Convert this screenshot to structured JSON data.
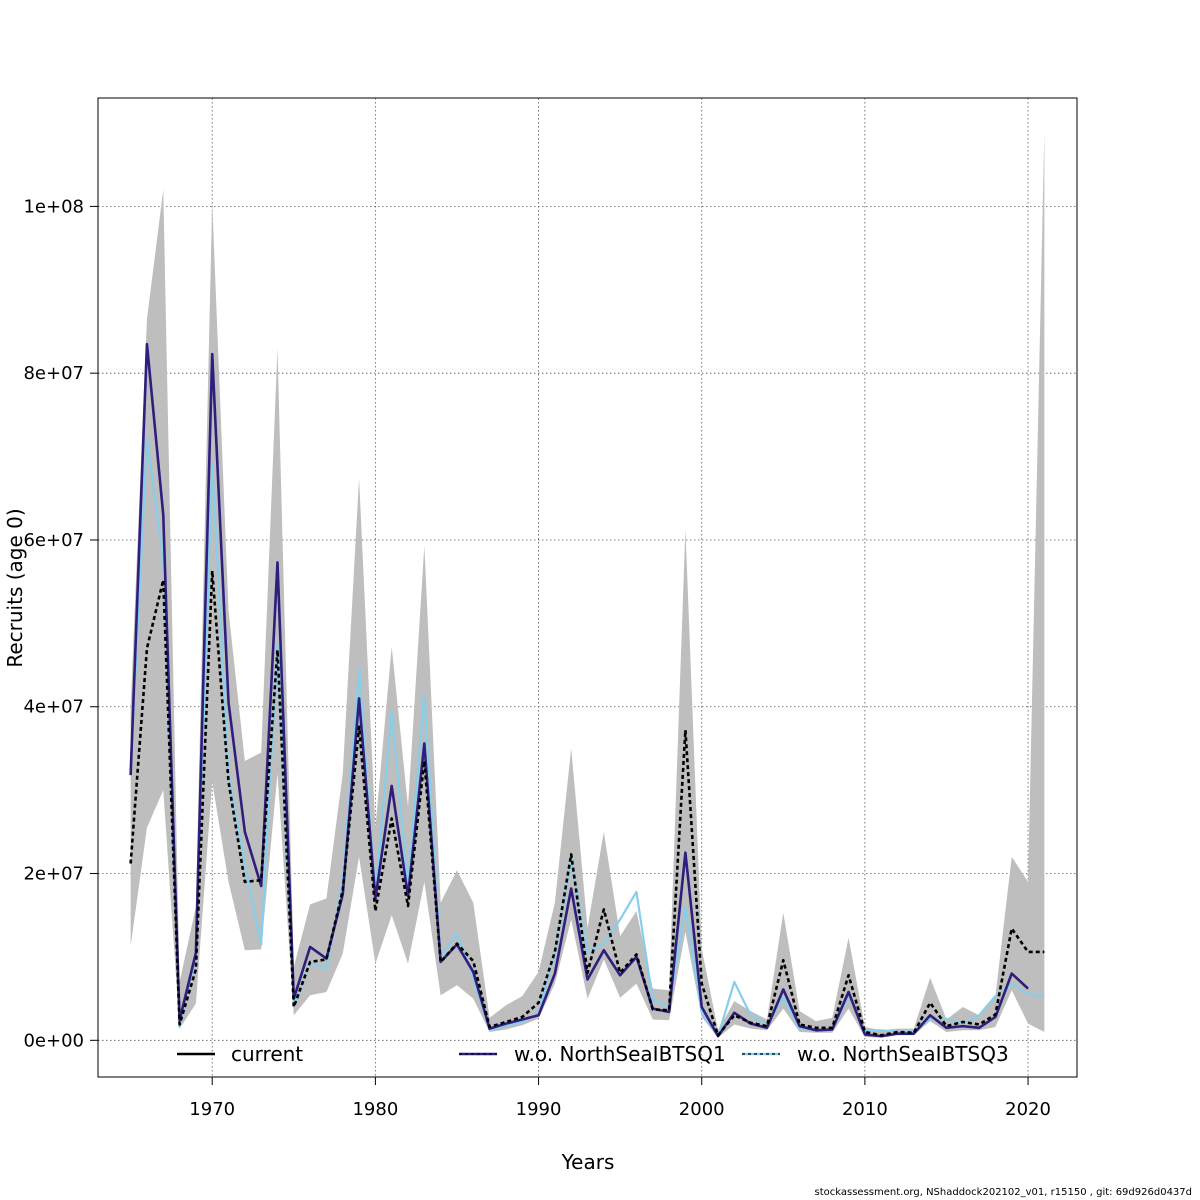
{
  "chart_data": {
    "type": "line",
    "title": "",
    "xlabel": "Years",
    "ylabel": "Recruits (age 0)",
    "xlim": [
      1963,
      2023
    ],
    "ylim": [
      -4400000,
      113000000
    ],
    "grid": true,
    "x_ticks": [
      1970,
      1980,
      1990,
      2000,
      2010,
      2020
    ],
    "x_tick_labels": [
      "1970",
      "1980",
      "1990",
      "2000",
      "2010",
      "2020"
    ],
    "y_ticks": [
      0,
      20000000,
      40000000,
      60000000,
      80000000,
      100000000
    ],
    "y_tick_labels": [
      "0e+00",
      "2e+07",
      "4e+07",
      "6e+07",
      "8e+07",
      "1e+08"
    ],
    "legend_position": "bottom",
    "x": [
      1965,
      1966,
      1967,
      1968,
      1969,
      1970,
      1971,
      1972,
      1973,
      1974,
      1975,
      1976,
      1977,
      1978,
      1979,
      1980,
      1981,
      1982,
      1983,
      1984,
      1985,
      1986,
      1987,
      1988,
      1989,
      1990,
      1991,
      1992,
      1993,
      1994,
      1995,
      1996,
      1997,
      1998,
      1999,
      2000,
      2001,
      2002,
      2003,
      2004,
      2005,
      2006,
      2007,
      2008,
      2009,
      2010,
      2011,
      2012,
      2013,
      2014,
      2015,
      2016,
      2017,
      2018,
      2019,
      2020,
      2021
    ],
    "confidence_band": {
      "color": "#bebebe",
      "lower": [
        11300000,
        25500000,
        30000000,
        1400000,
        4400000,
        31000000,
        19000000,
        10800000,
        10900000,
        32000000,
        3000000,
        5400000,
        5800000,
        10400000,
        22000000,
        9200000,
        15000000,
        9200000,
        19000000,
        5400000,
        6600000,
        5000000,
        1000000,
        1300000,
        1800000,
        2600000,
        6800000,
        14500000,
        5000000,
        9700000,
        5100000,
        6800000,
        2500000,
        2400000,
        13000000,
        2800000,
        300000,
        1900000,
        1400000,
        1200000,
        3800000,
        1000000,
        900000,
        900000,
        3800000,
        400000,
        300000,
        600000,
        600000,
        2300000,
        1000000,
        1200000,
        1200000,
        1600000,
        6000000,
        2000000,
        1000000
      ],
      "upper": [
        40000000,
        86500000,
        102000000,
        7000000,
        16000000,
        100500000,
        51500000,
        33500000,
        34500000,
        83000000,
        8800000,
        16300000,
        17000000,
        32000000,
        67400000,
        25500000,
        47200000,
        28000000,
        59300000,
        16500000,
        20400000,
        16500000,
        2700000,
        4200000,
        5300000,
        8200000,
        16500000,
        35000000,
        13500000,
        25000000,
        12500000,
        15500000,
        6200000,
        6000000,
        61300000,
        11000000,
        1200000,
        4700000,
        3500000,
        2500000,
        15300000,
        3500000,
        2300000,
        2700000,
        12300000,
        1600000,
        1200000,
        1400000,
        1400000,
        7500000,
        2500000,
        4000000,
        3000000,
        5300000,
        22000000,
        19000000,
        109000000
      ]
    },
    "series": [
      {
        "name": "current",
        "color": "#000000",
        "values": [
          21200000,
          47000000,
          55200000,
          1900000,
          8500000,
          56300000,
          31000000,
          19000000,
          19200000,
          46800000,
          4000000,
          9400000,
          9700000,
          18000000,
          37600000,
          15500000,
          26600000,
          16100000,
          33500000,
          9400000,
          11600000,
          9500000,
          1600000,
          2200000,
          2800000,
          4500000,
          10600000,
          22300000,
          8100000,
          15700000,
          8100000,
          10300000,
          3700000,
          3600000,
          37200000,
          6800000,
          600000,
          3000000,
          2100000,
          1700000,
          9600000,
          1900000,
          1500000,
          1500000,
          7800000,
          1000000,
          600000,
          1000000,
          900000,
          4500000,
          1700000,
          2200000,
          1900000,
          3100000,
          13400000,
          10600000,
          10600000
        ]
      },
      {
        "name": "w.o. NorthSeaIBTSQ1",
        "color": "#2f1e7c",
        "values": [
          31800000,
          83500000,
          63000000,
          2400000,
          10500000,
          82300000,
          40500000,
          25000000,
          18500000,
          57300000,
          5000000,
          11200000,
          9800000,
          17500000,
          41000000,
          17000000,
          30500000,
          17300000,
          35600000,
          9400000,
          11500000,
          8200000,
          1400000,
          2000000,
          2500000,
          3000000,
          8000000,
          18200000,
          7300000,
          10800000,
          7800000,
          10000000,
          3800000,
          3400000,
          22500000,
          4000000,
          500000,
          3300000,
          2000000,
          1500000,
          6100000,
          1700000,
          1200000,
          1300000,
          5800000,
          700000,
          500000,
          800000,
          800000,
          3000000,
          1500000,
          1700000,
          1500000,
          2800000,
          8000000,
          6200000,
          null
        ]
      },
      {
        "name": "w.o. NorthSeaIBTSQ3",
        "color": "#87ceeb",
        "values": [
          32500000,
          72000000,
          57500000,
          1600000,
          10200000,
          69000000,
          32000000,
          21000000,
          11500000,
          47500000,
          4200000,
          9300000,
          8600000,
          19000000,
          44500000,
          17500000,
          39500000,
          18500000,
          41500000,
          10000000,
          12800000,
          7500000,
          1200000,
          1800000,
          2200000,
          3300000,
          10500000,
          21700000,
          10600000,
          11600000,
          14500000,
          17800000,
          4800000,
          4000000,
          16000000,
          3300000,
          500000,
          7000000,
          3000000,
          1900000,
          5100000,
          1400000,
          1300000,
          1200000,
          5400000,
          1200000,
          1200000,
          1000000,
          1100000,
          2500000,
          2600000,
          2000000,
          3000000,
          5300000,
          6800000,
          5500000,
          5300000
        ]
      }
    ]
  },
  "footer": {
    "text": "stockassessment.org, NShaddock202102_v01, r15150 , git: 69d926d0437d"
  }
}
